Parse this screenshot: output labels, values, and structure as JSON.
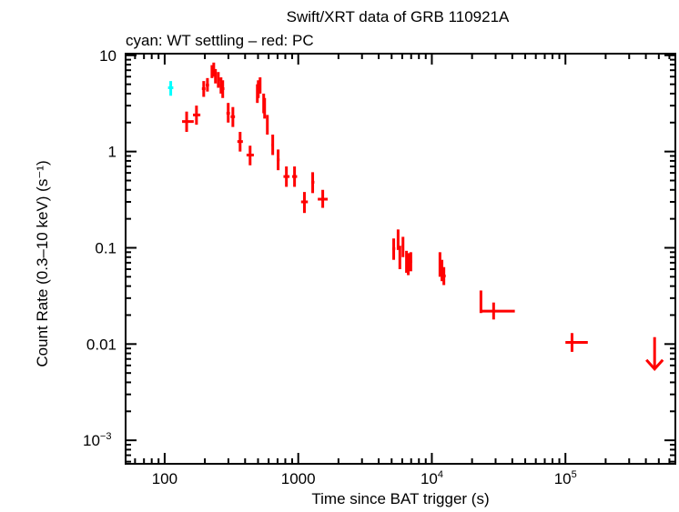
{
  "chart_data": {
    "type": "scatter",
    "title": "Swift/XRT data of GRB 110921A",
    "subtitle": "cyan: WT settling – red: PC",
    "xlabel": "Time since BAT trigger (s)",
    "ylabel": "Count Rate (0.3–10 keV) (s⁻¹)",
    "xscale": "log",
    "yscale": "log",
    "xlim": [
      51,
      665000
    ],
    "ylim": [
      0.00057,
      10.4
    ],
    "grid": false,
    "x_ticks": [
      {
        "value": 100,
        "label": "100"
      },
      {
        "value": 1000,
        "label": "1000"
      },
      {
        "value": 10000,
        "label": "10",
        "sup": "4"
      },
      {
        "value": 100000,
        "label": "10",
        "sup": "5"
      }
    ],
    "y_ticks": [
      {
        "value": 10,
        "label": "10"
      },
      {
        "value": 1,
        "label": "1"
      },
      {
        "value": 0.1,
        "label": "0.1"
      },
      {
        "value": 0.01,
        "label": "0.01"
      },
      {
        "value": 0.001,
        "label": "10",
        "sup": "−3"
      }
    ],
    "point_format": [
      "t",
      "t_lo",
      "t_hi",
      "rate",
      "rate_lo",
      "rate_hi"
    ],
    "series": [
      {
        "mode": "WT settling",
        "color": "#00ffff",
        "points": [
          [
            111,
            106,
            116,
            4.6,
            3.8,
            5.4
          ]
        ]
      },
      {
        "mode": "PC",
        "color": "#ff0000",
        "points": [
          [
            146,
            135,
            165,
            2.05,
            1.6,
            2.6
          ],
          [
            173,
            163,
            185,
            2.4,
            1.9,
            3.0
          ],
          [
            196,
            190,
            202,
            4.5,
            3.7,
            5.4
          ],
          [
            209,
            203,
            215,
            4.9,
            4.2,
            5.8
          ],
          [
            226,
            222,
            230,
            6.8,
            5.8,
            7.9
          ],
          [
            233,
            229,
            237,
            7.2,
            6.0,
            8.4
          ],
          [
            240,
            236,
            245,
            6.1,
            5.1,
            7.2
          ],
          [
            252,
            247,
            258,
            5.6,
            4.6,
            6.7
          ],
          [
            264,
            258,
            270,
            4.9,
            4.0,
            5.9
          ],
          [
            272,
            266,
            280,
            4.5,
            3.6,
            5.5
          ],
          [
            299,
            290,
            308,
            2.5,
            2.0,
            3.2
          ],
          [
            324,
            312,
            336,
            2.3,
            1.8,
            2.9
          ],
          [
            367,
            350,
            385,
            1.27,
            1.0,
            1.6
          ],
          [
            436,
            410,
            465,
            0.92,
            0.72,
            1.15
          ],
          [
            494,
            486,
            502,
            4.0,
            3.2,
            5.0
          ],
          [
            502,
            496,
            508,
            4.5,
            3.6,
            5.5
          ],
          [
            518,
            510,
            526,
            4.9,
            4.0,
            5.9
          ],
          [
            551,
            543,
            560,
            3.2,
            2.5,
            4.0
          ],
          [
            560,
            552,
            568,
            2.8,
            2.2,
            3.6
          ],
          [
            587,
            578,
            597,
            1.9,
            1.5,
            2.4
          ],
          [
            644,
            630,
            658,
            1.17,
            0.92,
            1.5
          ],
          [
            707,
            690,
            725,
            0.82,
            0.64,
            1.05
          ],
          [
            815,
            775,
            860,
            0.55,
            0.43,
            0.7
          ],
          [
            938,
            900,
            980,
            0.55,
            0.43,
            0.7
          ],
          [
            1112,
            1050,
            1180,
            0.3,
            0.23,
            0.38
          ],
          [
            1282,
            1250,
            1320,
            0.48,
            0.37,
            0.61
          ],
          [
            1525,
            1400,
            1660,
            0.32,
            0.26,
            0.4
          ],
          [
            5180,
            5050,
            5320,
            0.098,
            0.075,
            0.125
          ],
          [
            5590,
            5500,
            5680,
            0.122,
            0.095,
            0.155
          ],
          [
            5760,
            5680,
            5840,
            0.081,
            0.06,
            0.105
          ],
          [
            6080,
            5950,
            6200,
            0.104,
            0.08,
            0.13
          ],
          [
            6460,
            6350,
            6570,
            0.072,
            0.055,
            0.093
          ],
          [
            6660,
            6560,
            6760,
            0.068,
            0.052,
            0.088
          ],
          [
            6960,
            6800,
            7120,
            0.072,
            0.057,
            0.09
          ],
          [
            11500,
            11300,
            11700,
            0.068,
            0.05,
            0.09
          ],
          [
            11900,
            11700,
            12100,
            0.058,
            0.045,
            0.075
          ],
          [
            12300,
            12000,
            12700,
            0.051,
            0.041,
            0.063
          ],
          [
            23300,
            23000,
            23600,
            0.028,
            0.021,
            0.036
          ],
          [
            29000,
            23300,
            41800,
            0.022,
            0.018,
            0.027
          ],
          [
            112000,
            100000,
            147000,
            0.0104,
            0.0083,
            0.013
          ]
        ],
        "upper_limits": [
          [
            465000,
            0.0118
          ]
        ]
      }
    ]
  }
}
